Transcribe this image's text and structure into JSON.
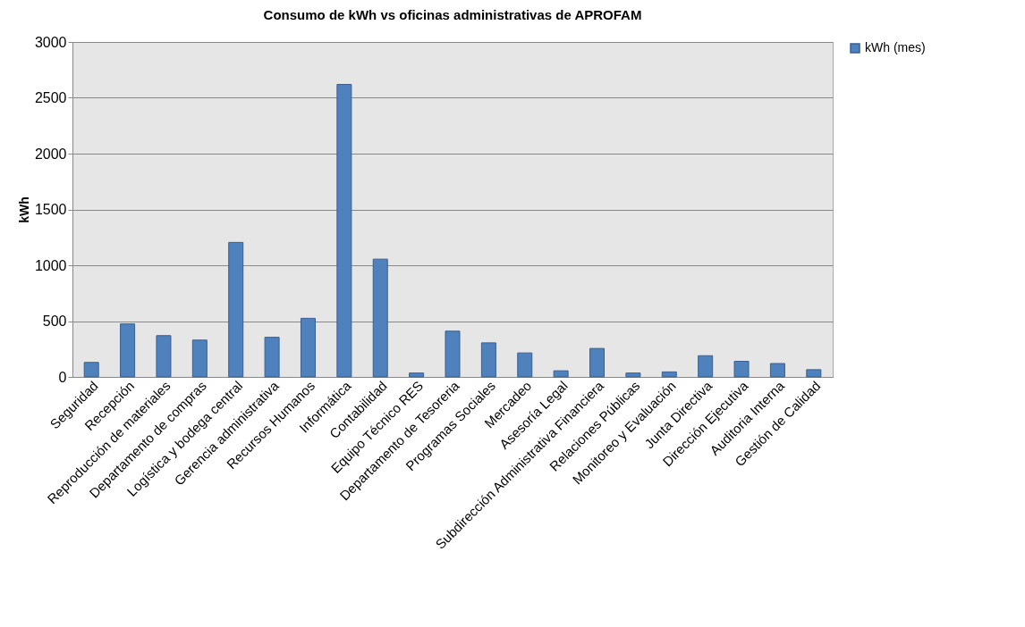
{
  "chart_data": {
    "type": "bar",
    "title": "Consumo de kWh vs oficinas administrativas de APROFAM",
    "ylabel": "kWh",
    "categories": [
      "Seguridad",
      "Recepción",
      "Reproducción de materiales",
      "Departamento de compras",
      "Logística y bodega central",
      "Gerencia administrativa",
      "Recursos Humanos",
      "Informática",
      "Contabilidad",
      "Equipo Técnico RES",
      "Departamento de Tesoreria",
      "Programas Sociales",
      "Mercadeo",
      "Asesoría Legal",
      "Subdirección Administrativa Financiera",
      "Relaciones Públicas",
      "Monitoreo y Evaluación",
      "Junta Directiva",
      "Dirección Ejecutiva",
      "Auditoria Interna",
      "Gestión de Calidad"
    ],
    "series": [
      {
        "name": "kWh (mes)",
        "color": "#4f81bd",
        "values": [
          130,
          475,
          370,
          330,
          1205,
          355,
          525,
          2620,
          1055,
          35,
          410,
          305,
          215,
          55,
          255,
          35,
          45,
          190,
          140,
          120,
          65
        ]
      }
    ],
    "ylim": [
      0,
      3000
    ],
    "yticks": [
      0,
      500,
      1000,
      1500,
      2000,
      2500,
      3000
    ],
    "grid": "y",
    "legend": "right"
  }
}
